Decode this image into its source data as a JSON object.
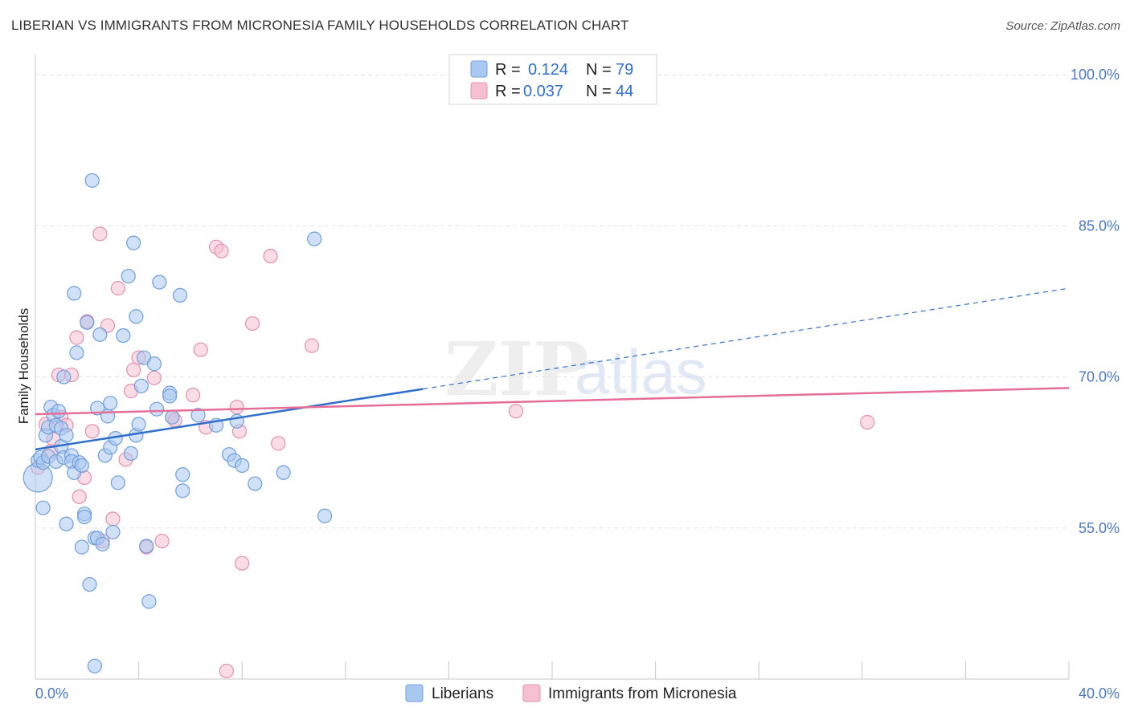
{
  "header": {
    "title": "LIBERIAN VS IMMIGRANTS FROM MICRONESIA FAMILY HOUSEHOLDS CORRELATION CHART",
    "source": "Source: ZipAtlas.com"
  },
  "watermark": {
    "part1": "ZIP",
    "part2": "atlas"
  },
  "colors": {
    "blue_fill": "#a9c8f0",
    "blue_stroke": "#6f9fdc",
    "blue_line": "#2f6fcc",
    "pink_fill": "#f6bfd2",
    "pink_stroke": "#e48fae",
    "pink_line": "#e56d96",
    "tick_text": "#4a78c4",
    "grid": "#e3e3e3"
  },
  "legend": {
    "rows": [
      {
        "r_label": "R = ",
        "r_value": "0.124",
        "n_label": "N = ",
        "n_value": "79"
      },
      {
        "r_label": "R = ",
        "r_value": "0.037",
        "n_label": "N = ",
        "n_value": "44"
      }
    ]
  },
  "chart_data": {
    "type": "scatter",
    "title": "LIBERIAN VS IMMIGRANTS FROM MICRONESIA FAMILY HOUSEHOLDS CORRELATION CHART",
    "xlabel": "",
    "ylabel": "Family Households",
    "xlim": [
      0,
      40
    ],
    "ylim": [
      40,
      102
    ],
    "x_tick_labels": [
      "0.0%",
      "40.0%"
    ],
    "y_ticks": [
      55,
      70,
      85,
      100
    ],
    "y_tick_labels": [
      "55.0%",
      "70.0%",
      "85.0%",
      "100.0%"
    ],
    "legend_position": "bottom-center",
    "series": [
      {
        "name": "Liberians",
        "r": 0.124,
        "n": 79,
        "trend": {
          "x0": 0,
          "y0": 62.8,
          "x1": 40,
          "y1": 78.8,
          "solid_until": 15
        },
        "points": [
          [
            0.1,
            60.0
          ],
          [
            0.1,
            61.7
          ],
          [
            0.2,
            62.0
          ],
          [
            0.3,
            61.5
          ],
          [
            0.3,
            57.0
          ],
          [
            0.4,
            64.2
          ],
          [
            0.5,
            62.1
          ],
          [
            0.5,
            65.0
          ],
          [
            0.6,
            67.0
          ],
          [
            0.7,
            66.2
          ],
          [
            0.8,
            65.2
          ],
          [
            0.8,
            61.6
          ],
          [
            0.9,
            66.6
          ],
          [
            1.0,
            64.9
          ],
          [
            1.0,
            63.1
          ],
          [
            1.1,
            70.0
          ],
          [
            1.1,
            62.0
          ],
          [
            1.2,
            55.4
          ],
          [
            1.2,
            64.2
          ],
          [
            1.4,
            62.2
          ],
          [
            1.4,
            61.6
          ],
          [
            1.5,
            60.5
          ],
          [
            1.5,
            78.3
          ],
          [
            1.6,
            72.4
          ],
          [
            1.7,
            61.5
          ],
          [
            1.8,
            61.2
          ],
          [
            1.8,
            53.1
          ],
          [
            1.9,
            56.4
          ],
          [
            1.9,
            56.1
          ],
          [
            2.0,
            75.4
          ],
          [
            2.1,
            49.4
          ],
          [
            2.2,
            89.5
          ],
          [
            2.3,
            41.3
          ],
          [
            2.3,
            54.0
          ],
          [
            2.4,
            54.0
          ],
          [
            2.4,
            66.9
          ],
          [
            2.5,
            74.2
          ],
          [
            2.6,
            53.4
          ],
          [
            2.7,
            62.2
          ],
          [
            2.8,
            66.1
          ],
          [
            2.9,
            67.4
          ],
          [
            2.9,
            63.0
          ],
          [
            3.0,
            54.6
          ],
          [
            3.1,
            63.9
          ],
          [
            3.2,
            59.5
          ],
          [
            3.4,
            74.1
          ],
          [
            3.6,
            80.0
          ],
          [
            3.7,
            62.4
          ],
          [
            3.8,
            83.3
          ],
          [
            3.9,
            76.0
          ],
          [
            3.9,
            64.2
          ],
          [
            4.0,
            65.3
          ],
          [
            4.1,
            69.1
          ],
          [
            4.2,
            71.9
          ],
          [
            4.3,
            53.2
          ],
          [
            4.4,
            47.7
          ],
          [
            4.6,
            71.3
          ],
          [
            4.7,
            66.8
          ],
          [
            4.8,
            79.4
          ],
          [
            5.2,
            68.4
          ],
          [
            5.2,
            68.1
          ],
          [
            5.3,
            66.0
          ],
          [
            5.6,
            78.1
          ],
          [
            5.7,
            60.3
          ],
          [
            5.7,
            58.7
          ],
          [
            6.3,
            66.2
          ],
          [
            7.0,
            65.2
          ],
          [
            7.5,
            62.3
          ],
          [
            7.7,
            61.7
          ],
          [
            7.8,
            65.6
          ],
          [
            8.0,
            61.2
          ],
          [
            8.5,
            59.4
          ],
          [
            9.6,
            60.5
          ],
          [
            10.8,
            83.7
          ],
          [
            11.2,
            56.2
          ]
        ]
      },
      {
        "name": "Immigrants from Micronesia",
        "r": 0.037,
        "n": 44,
        "trend": {
          "x0": 0,
          "y0": 66.3,
          "x1": 40,
          "y1": 68.9,
          "solid_until": 40
        },
        "points": [
          [
            0.1,
            61.0
          ],
          [
            0.4,
            65.3
          ],
          [
            0.6,
            62.6
          ],
          [
            0.7,
            63.8
          ],
          [
            0.9,
            70.2
          ],
          [
            1.0,
            66.0
          ],
          [
            1.2,
            65.2
          ],
          [
            1.4,
            70.2
          ],
          [
            1.6,
            73.9
          ],
          [
            1.7,
            58.1
          ],
          [
            1.9,
            60.0
          ],
          [
            2.0,
            75.5
          ],
          [
            2.2,
            64.6
          ],
          [
            2.5,
            84.2
          ],
          [
            2.6,
            53.7
          ],
          [
            2.8,
            75.1
          ],
          [
            3.0,
            55.9
          ],
          [
            3.2,
            78.8
          ],
          [
            3.5,
            61.8
          ],
          [
            3.7,
            68.6
          ],
          [
            3.8,
            70.7
          ],
          [
            4.0,
            71.9
          ],
          [
            4.3,
            53.1
          ],
          [
            4.6,
            69.9
          ],
          [
            4.9,
            53.7
          ],
          [
            5.3,
            66.0
          ],
          [
            5.4,
            65.7
          ],
          [
            6.1,
            68.2
          ],
          [
            6.4,
            72.7
          ],
          [
            6.6,
            65.0
          ],
          [
            7.0,
            82.9
          ],
          [
            7.2,
            82.5
          ],
          [
            7.4,
            40.8
          ],
          [
            7.8,
            67.0
          ],
          [
            7.9,
            64.6
          ],
          [
            8.0,
            51.5
          ],
          [
            8.4,
            75.3
          ],
          [
            9.1,
            82.0
          ],
          [
            9.4,
            63.4
          ],
          [
            10.7,
            73.1
          ],
          [
            18.6,
            66.6
          ],
          [
            32.2,
            65.5
          ]
        ]
      }
    ]
  }
}
